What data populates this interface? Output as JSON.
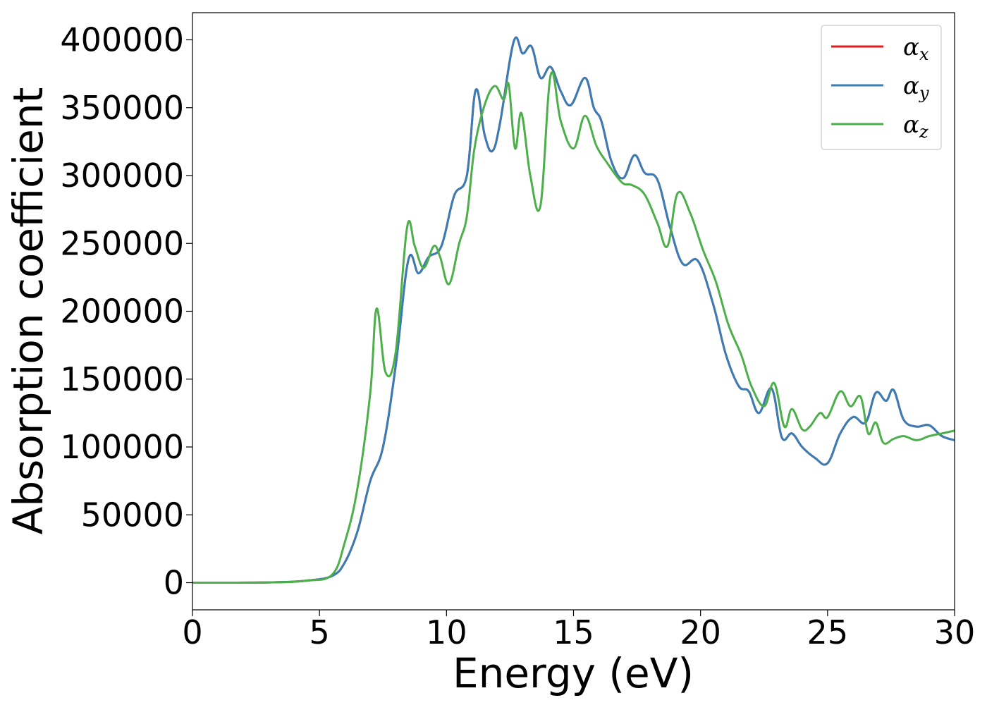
{
  "chart_data": {
    "type": "line",
    "xlabel": "Energy (eV)",
    "ylabel": "Absorption coefficient",
    "xlim": [
      0,
      30
    ],
    "ylim": [
      -20000,
      420000
    ],
    "xticks": [
      0,
      5,
      10,
      15,
      20,
      25,
      30
    ],
    "yticks": [
      0,
      50000,
      100000,
      150000,
      200000,
      250000,
      300000,
      350000,
      400000
    ],
    "xtick_labels": [
      "0",
      "5",
      "10",
      "15",
      "20",
      "25",
      "30"
    ],
    "ytick_labels": [
      "0",
      "50000",
      "100000",
      "150000",
      "200000",
      "250000",
      "300000",
      "350000",
      "400000"
    ],
    "grid": false,
    "legend_position": "top-right",
    "series": [
      {
        "name": "αx",
        "symbol": "α",
        "subscript": "x",
        "color": "#e41a1c",
        "x": [
          0,
          3,
          4.5,
          5.5,
          6,
          6.5,
          7,
          7.5,
          8,
          8.5,
          8.9,
          9.3,
          9.8,
          10.3,
          10.8,
          11.15,
          11.5,
          11.8,
          12.1,
          12.65,
          13,
          13.35,
          13.7,
          14.1,
          14.5,
          14.9,
          15.45,
          15.8,
          16.1,
          16.5,
          16.95,
          17.4,
          17.8,
          18.3,
          18.8,
          19.3,
          19.9,
          20.5,
          21,
          21.5,
          21.9,
          22.3,
          22.8,
          23.2,
          23.6,
          24,
          24.5,
          25,
          25.5,
          26,
          26.5,
          26.9,
          27.3,
          27.6,
          28,
          28.5,
          29,
          29.5,
          30
        ],
        "values": [
          0,
          200,
          1500,
          5000,
          15000,
          38000,
          75000,
          100000,
          160000,
          238000,
          228000,
          240000,
          248000,
          285000,
          300000,
          363000,
          330000,
          318000,
          338000,
          399000,
          390000,
          395000,
          372000,
          380000,
          362000,
          352000,
          372000,
          350000,
          340000,
          310000,
          298000,
          315000,
          302000,
          297000,
          262000,
          235000,
          237000,
          205000,
          168000,
          145000,
          141000,
          125000,
          143000,
          107000,
          110000,
          100000,
          92000,
          88000,
          110000,
          122000,
          118000,
          140000,
          134000,
          142000,
          120000,
          115000,
          116000,
          108000,
          105000
        ]
      },
      {
        "name": "αy",
        "symbol": "α",
        "subscript": "y",
        "color": "#377eb8",
        "x": [
          0,
          3,
          4.5,
          5.5,
          6,
          6.5,
          7,
          7.5,
          8,
          8.5,
          8.9,
          9.3,
          9.8,
          10.3,
          10.8,
          11.15,
          11.5,
          11.8,
          12.1,
          12.65,
          13,
          13.35,
          13.7,
          14.1,
          14.5,
          14.9,
          15.45,
          15.8,
          16.1,
          16.5,
          16.95,
          17.4,
          17.8,
          18.3,
          18.8,
          19.3,
          19.9,
          20.5,
          21,
          21.5,
          21.9,
          22.3,
          22.8,
          23.2,
          23.6,
          24,
          24.5,
          25,
          25.5,
          26,
          26.5,
          26.9,
          27.3,
          27.6,
          28,
          28.5,
          29,
          29.5,
          30
        ],
        "values": [
          0,
          200,
          1500,
          5000,
          15000,
          38000,
          75000,
          100000,
          160000,
          238000,
          228000,
          240000,
          248000,
          285000,
          300000,
          363000,
          330000,
          318000,
          338000,
          399000,
          390000,
          395000,
          372000,
          380000,
          362000,
          352000,
          372000,
          350000,
          340000,
          310000,
          298000,
          315000,
          302000,
          297000,
          262000,
          235000,
          237000,
          205000,
          168000,
          145000,
          141000,
          125000,
          143000,
          107000,
          110000,
          100000,
          92000,
          88000,
          110000,
          122000,
          118000,
          140000,
          134000,
          142000,
          120000,
          115000,
          116000,
          108000,
          105000
        ]
      },
      {
        "name": "αz",
        "symbol": "α",
        "subscript": "z",
        "color": "#4daf4a",
        "x": [
          0,
          3,
          4.5,
          5.5,
          6,
          6.5,
          7,
          7.25,
          7.6,
          8,
          8.45,
          8.75,
          9.1,
          9.5,
          9.75,
          10.1,
          10.5,
          10.8,
          11.1,
          11.5,
          11.9,
          12.25,
          12.45,
          12.7,
          12.95,
          13.3,
          13.7,
          14.1,
          14.5,
          15,
          15.45,
          15.9,
          16.3,
          16.9,
          17.3,
          17.8,
          18.3,
          18.7,
          19.1,
          19.6,
          20.1,
          20.6,
          21.1,
          21.6,
          22,
          22.5,
          22.9,
          23.3,
          23.6,
          24,
          24.3,
          24.7,
          25,
          25.5,
          25.9,
          26.3,
          26.6,
          26.9,
          27.2,
          27.6,
          28,
          28.5,
          29,
          29.5,
          30
        ],
        "values": [
          0,
          200,
          1500,
          6000,
          30000,
          70000,
          140000,
          202000,
          155000,
          170000,
          262000,
          248000,
          232000,
          248000,
          240000,
          220000,
          250000,
          270000,
          320000,
          352000,
          366000,
          356000,
          367000,
          320000,
          346000,
          300000,
          278000,
          374000,
          340000,
          320000,
          344000,
          322000,
          310000,
          295000,
          293000,
          286000,
          265000,
          248000,
          287000,
          272000,
          245000,
          222000,
          190000,
          168000,
          145000,
          130000,
          147000,
          115000,
          128000,
          113000,
          115000,
          125000,
          122000,
          141000,
          130000,
          137000,
          110000,
          118000,
          103000,
          106000,
          108000,
          105000,
          108000,
          110000,
          112000
        ]
      }
    ]
  }
}
